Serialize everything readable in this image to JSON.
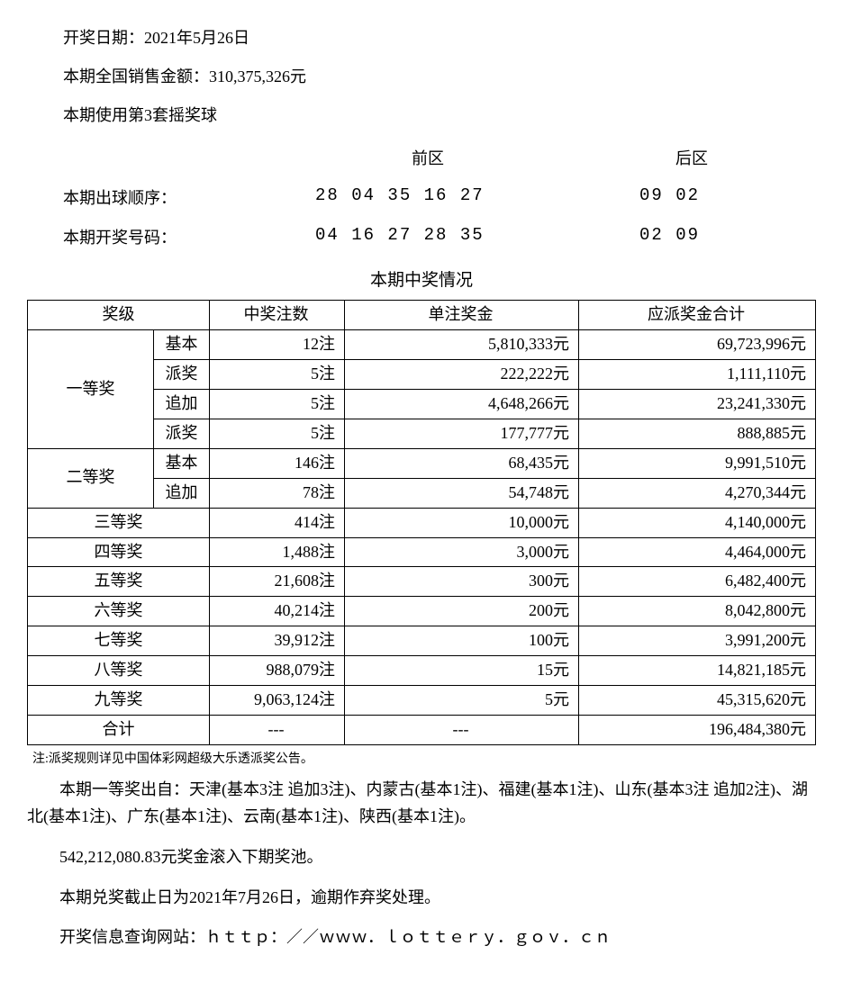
{
  "header": {
    "draw_date_label": "开奖日期：",
    "draw_date": "2021年5月26日",
    "sales_label": "本期全国销售金额：",
    "sales_amount": "310,375,326元",
    "ball_set": "本期使用第3套摇奖球"
  },
  "numbers": {
    "front_label": "前区",
    "back_label": "后区",
    "draw_order_label": "本期出球顺序：",
    "draw_order_front": "28 04 35 16 27",
    "draw_order_back": "09 02",
    "winning_label": "本期开奖号码：",
    "winning_front": "04 16 27 28 35",
    "winning_back": "02 09"
  },
  "table": {
    "title": "本期中奖情况",
    "headers": {
      "level": "奖级",
      "count": "中奖注数",
      "unit_prize": "单注奖金",
      "total": "应派奖金合计"
    },
    "tier1": {
      "name": "一等奖",
      "rows": [
        {
          "sub": "基本",
          "count": "12注",
          "prize": "5,810,333元",
          "total": "69,723,996元"
        },
        {
          "sub": "派奖",
          "count": "5注",
          "prize": "222,222元",
          "total": "1,111,110元"
        },
        {
          "sub": "追加",
          "count": "5注",
          "prize": "4,648,266元",
          "total": "23,241,330元"
        },
        {
          "sub": "派奖",
          "count": "5注",
          "prize": "177,777元",
          "total": "888,885元"
        }
      ]
    },
    "tier2": {
      "name": "二等奖",
      "rows": [
        {
          "sub": "基本",
          "count": "146注",
          "prize": "68,435元",
          "total": "9,991,510元"
        },
        {
          "sub": "追加",
          "count": "78注",
          "prize": "54,748元",
          "total": "4,270,344元"
        }
      ]
    },
    "simple_rows": [
      {
        "name": "三等奖",
        "count": "414注",
        "prize": "10,000元",
        "total": "4,140,000元"
      },
      {
        "name": "四等奖",
        "count": "1,488注",
        "prize": "3,000元",
        "total": "4,464,000元"
      },
      {
        "name": "五等奖",
        "count": "21,608注",
        "prize": "300元",
        "total": "6,482,400元"
      },
      {
        "name": "六等奖",
        "count": "40,214注",
        "prize": "200元",
        "total": "8,042,800元"
      },
      {
        "name": "七等奖",
        "count": "39,912注",
        "prize": "100元",
        "total": "3,991,200元"
      },
      {
        "name": "八等奖",
        "count": "988,079注",
        "prize": "15元",
        "total": "14,821,185元"
      },
      {
        "name": "九等奖",
        "count": "9,063,124注",
        "prize": "5元",
        "total": "45,315,620元"
      }
    ],
    "total_row": {
      "name": "合计",
      "count": "---",
      "prize": "---",
      "total": "196,484,380元"
    }
  },
  "footer": {
    "note": "注:派奖规则详见中国体彩网超级大乐透派奖公告。",
    "winners": "本期一等奖出自：天津(基本3注 追加3注)、内蒙古(基本1注)、福建(基本1注)、山东(基本3注 追加2注)、湖北(基本1注)、广东(基本1注)、云南(基本1注)、陕西(基本1注)。",
    "rollover": "542,212,080.83元奖金滚入下期奖池。",
    "deadline": "本期兑奖截止日为2021年7月26日，逾期作弃奖处理。",
    "website": "开奖信息查询网站：ｈｔｔｐ：／／ｗｗｗ．ｌｏｔｔｅｒｙ．ｇｏｖ．ｃｎ"
  },
  "style": {
    "text_color": "#000000",
    "background_color": "#ffffff",
    "border_color": "#000000",
    "body_fontsize": 18,
    "note_fontsize": 14,
    "font_family": "SimSun"
  }
}
